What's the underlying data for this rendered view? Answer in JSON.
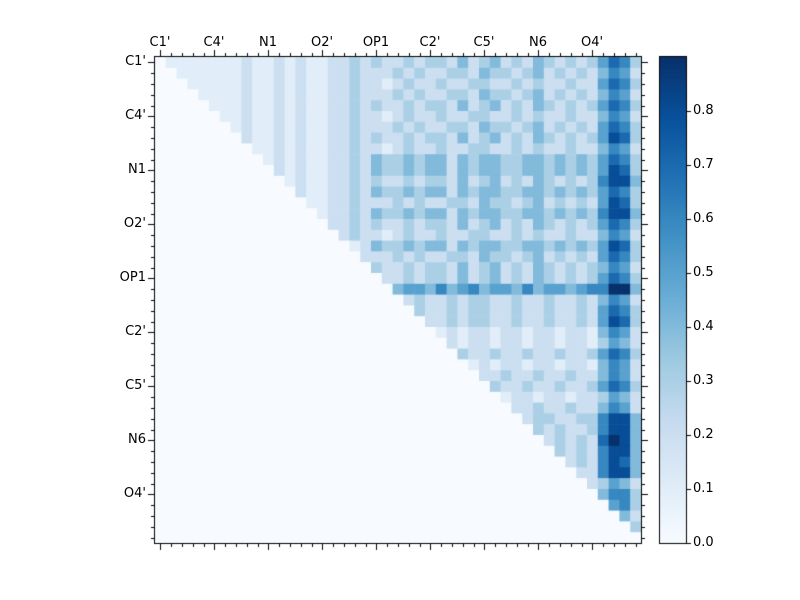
{
  "figure": {
    "background_color": "#ffffff",
    "title": ""
  },
  "chart_data": {
    "type": "heatmap",
    "description": "Upper-triangular atom-pair heatmap, Blues colormap; lower triangle is zero",
    "grid_size": 45,
    "x_tick_labels": [
      "C1'",
      "C4'",
      "N1",
      "O2'",
      "OP1",
      "C2'",
      "C5'",
      "N6",
      "O4'"
    ],
    "y_tick_labels": [
      "C1'",
      "C4'",
      "N1",
      "O2'",
      "OP1",
      "C2'",
      "C5'",
      "N6",
      "O4'"
    ],
    "tick_label_cells": [
      0,
      5,
      10,
      15,
      20,
      25,
      30,
      35,
      40
    ],
    "vmin": 0.0,
    "vmax": 0.9,
    "colormap": "Blues",
    "colormap_colors": [
      "#f7fbff",
      "#deebf7",
      "#c6dbef",
      "#9ecae1",
      "#6baed6",
      "#4292c6",
      "#2171b5",
      "#08519c",
      "#08306b"
    ],
    "value_encoding": "each row is a string of digits; digit d = cell value d/10, row-major from top-left",
    "rows": [
      "011111112112121122323223233242342324323235763",
      "001111112112121122322232322332433234232324652",
      "000111112112121122322123223223322323223225763",
      "000011112112121122322232322332433234232324652",
      "000001112112121122323223233242342324323235763",
      "000000112112121122322123223223322323223224652",
      "000000012112121122322232322332433234232325763",
      "000000002112121122323223233242342324323235873",
      "000000000112121122322123223223322323223224652",
      "000000000012121122324334344243443344343435763",
      "000000000002121122324334344243443344343435873",
      "000000000000121122323223233242342324323236884",
      "000000000000021122324334344243443344343435763",
      "000000000000001122322232322332433234232325873",
      "000000000000000122324334344243443344343436884",
      "000000000000000022323223233242342324323235763",
      "000000000000000002322123223223322323223224652",
      "000000000000000000124334344243443344343435873",
      "000000000000000000022232322332433234232325763",
      "000000000000000000003223233242342324323234652",
      "000000000000000000000223233242342324323235763",
      "000000000000000000000045546456455464554566994",
      "000000000000000000000002322323322322322324652",
      "000000000000000000000000322323322322322325763",
      "000000000000000000000000022323322322322325873",
      "000000000000000000000000001212212212212214652",
      "000000000000000000000000000212212212212213542",
      "000000000000000000000000000032232232232235763",
      "000000000000000000000000000001212212212214652",
      "000000000000000000000000000000223223223224652",
      "000000000000000000000000000000032232232235763",
      "000000000000000000000000000000001221221223542",
      "000000000000000000000000000000000223223224652",
      "000000000000000000000000000000000023322336884",
      "000000000000000000000000000000000003232236884",
      "000000000000000000000000000000000000232327984",
      "000000000000000000000000000000000000032326884",
      "000000000000000000000000000000000000002326874",
      "000000000000000000000000000000000000000226884",
      "000000000000000000000000000000000000000023542",
      "000000000000000000000000000000000000000004663",
      "000000000000000000000000000000000000000000563",
      "000000000000000000000000000000000000000000042",
      "000000000000000000000000000000000000000000003",
      "000000000000000000000000000000000000000000000"
    ],
    "colorbar": {
      "tick_labels": [
        "0.0",
        "0.1",
        "0.2",
        "0.3",
        "0.4",
        "0.5",
        "0.6",
        "0.7",
        "0.8"
      ],
      "tick_values": [
        0.0,
        0.1,
        0.2,
        0.3,
        0.4,
        0.5,
        0.6,
        0.7,
        0.8
      ],
      "position": "right"
    },
    "legend": "none",
    "grid": "off",
    "x_axis_side": "top",
    "y_axis_side": "left"
  }
}
